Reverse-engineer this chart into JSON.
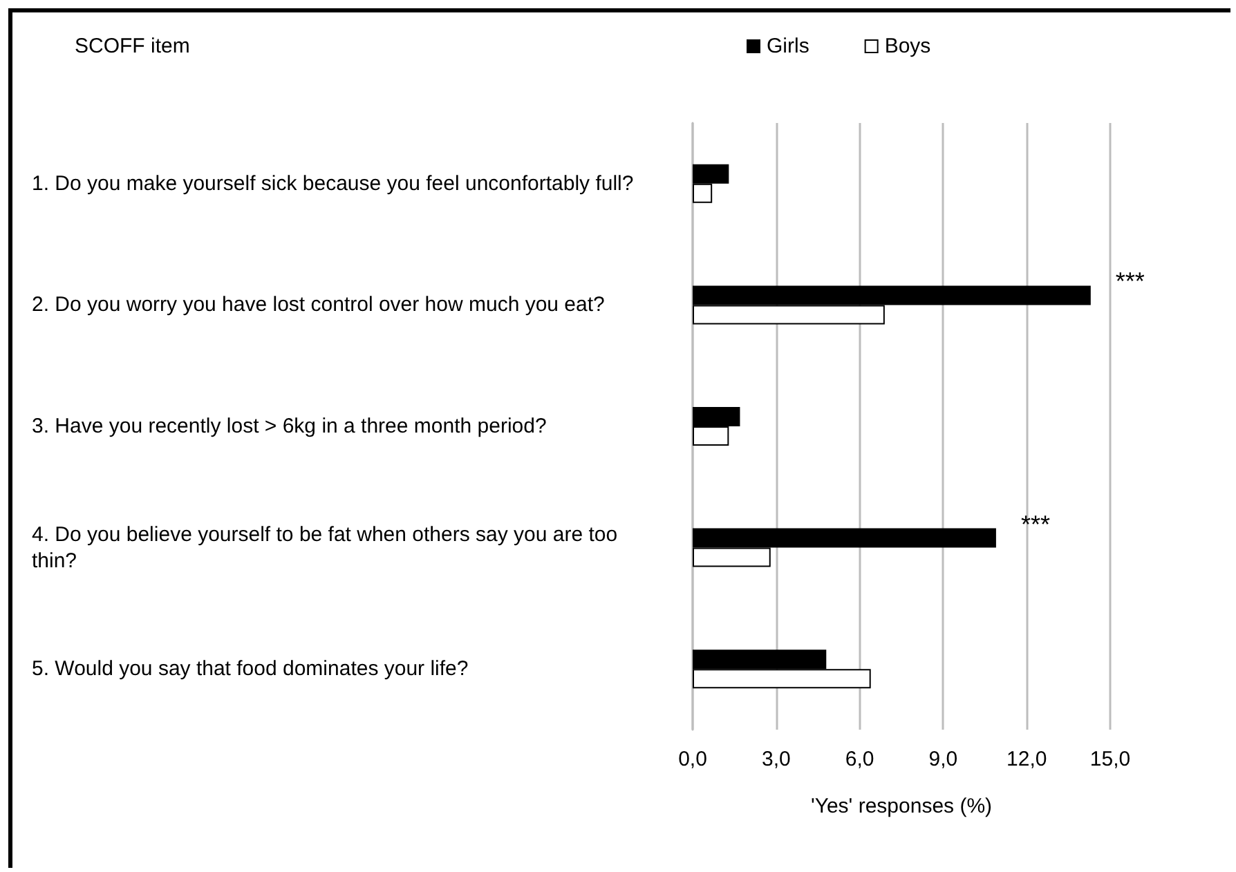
{
  "chart_data": {
    "type": "bar",
    "orientation": "horizontal",
    "ylabel": "SCOFF item",
    "xlabel": "'Yes' responses (%)",
    "categories": [
      "1. Do you make yourself sick because you feel unconfortably full?",
      "2. Do you worry you have lost control over how much you eat?",
      "3. Have you recently lost > 6kg in a three month period?",
      "4. Do you believe yourself to be fat when others say you are too thin?",
      "5. Would you say that food dominates your life?"
    ],
    "series": [
      {
        "name": "Girls",
        "color": "#000000",
        "values": [
          1.3,
          14.3,
          1.7,
          10.9,
          4.8
        ]
      },
      {
        "name": "Boys",
        "color": "#ffffff",
        "values": [
          0.7,
          6.9,
          1.3,
          2.8,
          6.4
        ]
      }
    ],
    "xlim": [
      0,
      15
    ],
    "xticks": [
      {
        "value": 0,
        "label": "0,0"
      },
      {
        "value": 3,
        "label": "3,0"
      },
      {
        "value": 6,
        "label": "6,0"
      },
      {
        "value": 9,
        "label": "9,0"
      },
      {
        "value": 12,
        "label": "12,0"
      },
      {
        "value": 15,
        "label": "15,0"
      }
    ],
    "annotations": [
      {
        "text": "***",
        "x": 14.3,
        "y": "2. Do you worry you have lost control over how much you eat?"
      },
      {
        "text": "***",
        "x": 10.9,
        "y": "4. Do you believe yourself to be fat when others say you are too thin?"
      }
    ],
    "grid": "x",
    "legend": "top"
  }
}
